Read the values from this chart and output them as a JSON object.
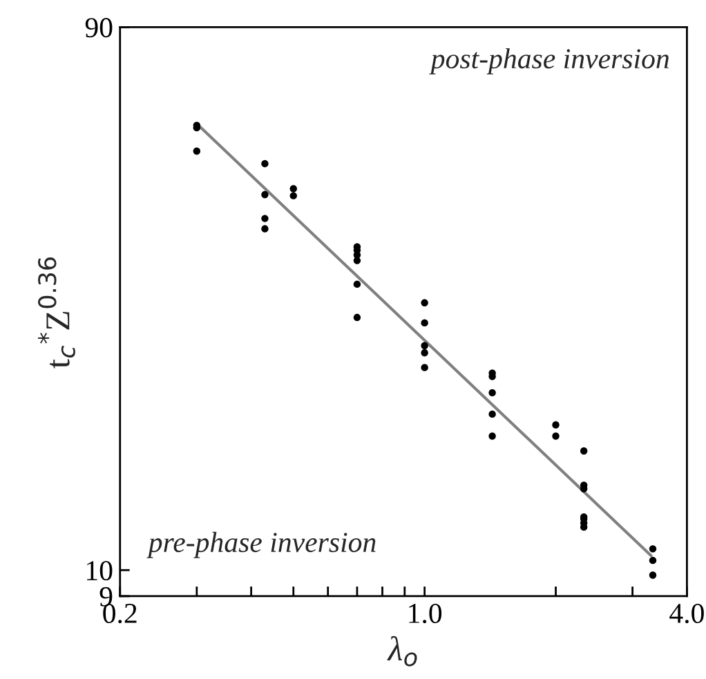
{
  "chart_data": {
    "type": "scatter",
    "xlabel": "λ$_{o}$",
    "ylabel": "t$_{c}$$^{*}$Z$^{0.36}$",
    "log": "xy",
    "grid": false,
    "xlim": [
      0.2,
      4.0
    ],
    "ylim": [
      9,
      90
    ],
    "xticks": [
      {
        "value": 0.2,
        "label": "0.2"
      },
      {
        "value": 0.3,
        "label": null
      },
      {
        "value": 0.4,
        "label": null
      },
      {
        "value": 0.5,
        "label": null
      },
      {
        "value": 0.6,
        "label": null
      },
      {
        "value": 0.7,
        "label": null
      },
      {
        "value": 0.8,
        "label": null
      },
      {
        "value": 0.9,
        "label": null
      },
      {
        "value": 1.0,
        "label": "1.0"
      },
      {
        "value": 2,
        "label": null
      },
      {
        "value": 3,
        "label": null
      },
      {
        "value": 4.0,
        "label": "4.0"
      }
    ],
    "yticks": [
      9,
      10,
      90
    ],
    "annotations": [
      "post-phase inversion",
      "pre-phase inversion"
    ],
    "series": [
      {
        "color": "#000000",
        "marker": "circle",
        "x": [
          0.3,
          0.3,
          0.3,
          0.43,
          0.43,
          0.43,
          0.43,
          0.5,
          0.5,
          0.7,
          0.7,
          0.7,
          0.7,
          0.7,
          0.7,
          1.0,
          1.0,
          1.0,
          1.0,
          1.0,
          1.43,
          1.43,
          1.43,
          1.43,
          1.43,
          2.0,
          2.0,
          2.32,
          2.32,
          2.32,
          2.32,
          2.32,
          2.32,
          2.32,
          3.34,
          3.34,
          3.34
        ],
        "values": [
          60.5,
          59.9,
          54.5,
          51.8,
          45.7,
          41.5,
          39.8,
          46.8,
          45.5,
          37.0,
          36.5,
          35.8,
          35.0,
          31.8,
          27.8,
          29.5,
          27.2,
          24.8,
          24.1,
          22.7,
          22.2,
          21.9,
          20.5,
          18.8,
          17.2,
          18.0,
          17.2,
          16.2,
          14.1,
          13.9,
          12.4,
          12.3,
          12.1,
          11.9,
          10.9,
          10.4,
          9.8
        ]
      },
      {
        "type": "line",
        "color": "#808080",
        "x": [
          0.3,
          3.31
        ],
        "values": [
          60.9,
          10.6
        ]
      }
    ]
  }
}
